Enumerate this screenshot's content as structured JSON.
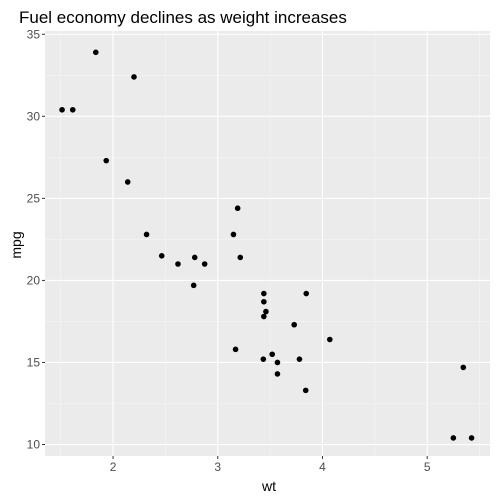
{
  "chart_data": {
    "type": "scatter",
    "title": "Fuel economy declines as weight increases",
    "xlabel": "wt",
    "ylabel": "mpg",
    "xlim": [
      1.35,
      5.6
    ],
    "ylim": [
      9.3,
      35.2
    ],
    "xticks": [
      2,
      3,
      4,
      5
    ],
    "yticks": [
      10,
      15,
      20,
      25,
      30,
      35
    ],
    "grid": true,
    "colors": {
      "panel": "#ebebeb",
      "grid_major": "#ffffff",
      "grid_minor": "#f5f5f5",
      "point": "#000000"
    },
    "points": [
      {
        "x": 2.62,
        "y": 21.0
      },
      {
        "x": 2.875,
        "y": 21.0
      },
      {
        "x": 2.32,
        "y": 22.8
      },
      {
        "x": 3.215,
        "y": 21.4
      },
      {
        "x": 3.44,
        "y": 18.7
      },
      {
        "x": 3.46,
        "y": 18.1
      },
      {
        "x": 3.57,
        "y": 14.3
      },
      {
        "x": 3.19,
        "y": 24.4
      },
      {
        "x": 3.15,
        "y": 22.8
      },
      {
        "x": 3.44,
        "y": 19.2
      },
      {
        "x": 3.44,
        "y": 17.8
      },
      {
        "x": 4.07,
        "y": 16.4
      },
      {
        "x": 3.73,
        "y": 17.3
      },
      {
        "x": 3.78,
        "y": 15.2
      },
      {
        "x": 5.25,
        "y": 10.4
      },
      {
        "x": 5.424,
        "y": 10.4
      },
      {
        "x": 5.345,
        "y": 14.7
      },
      {
        "x": 2.2,
        "y": 32.4
      },
      {
        "x": 1.615,
        "y": 30.4
      },
      {
        "x": 1.835,
        "y": 33.9
      },
      {
        "x": 2.465,
        "y": 21.5
      },
      {
        "x": 3.52,
        "y": 15.5
      },
      {
        "x": 3.435,
        "y": 15.2
      },
      {
        "x": 3.84,
        "y": 13.3
      },
      {
        "x": 3.845,
        "y": 19.2
      },
      {
        "x": 1.935,
        "y": 27.3
      },
      {
        "x": 2.14,
        "y": 26.0
      },
      {
        "x": 1.513,
        "y": 30.4
      },
      {
        "x": 3.17,
        "y": 15.8
      },
      {
        "x": 2.77,
        "y": 19.7
      },
      {
        "x": 3.57,
        "y": 15.0
      },
      {
        "x": 2.78,
        "y": 21.4
      }
    ]
  }
}
